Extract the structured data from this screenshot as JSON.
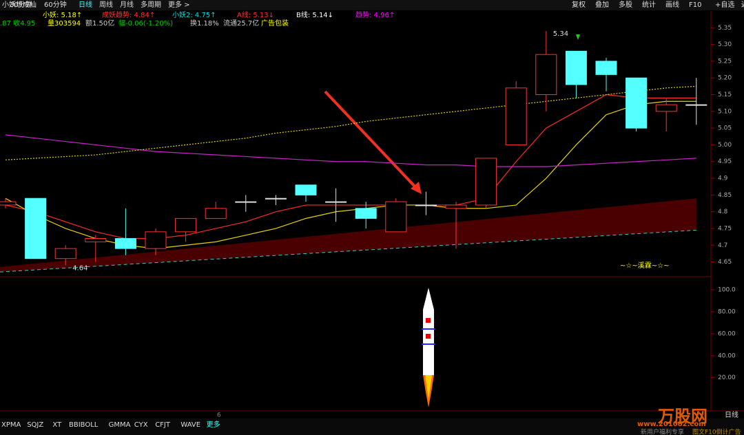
{
  "toolbar": {
    "left": [
      "30分钟",
      "60分钟",
      "日线",
      "周线",
      "月线",
      "多周期",
      "更多 >"
    ],
    "right": [
      "复权",
      "叠加",
      "多股",
      "统计",
      "画线",
      "F10",
      "+自选",
      "返回"
    ]
  },
  "indicator_row": {
    "name": "小妖想成仙",
    "items": [
      {
        "text": "小妖: 5.18↑",
        "color": "#ffff00"
      },
      {
        "text": "成妖趋势: 4.84↑",
        "color": "#ff3232"
      },
      {
        "text": "小妖2: 4.75↑",
        "color": "#00e0e0"
      },
      {
        "text": "A线: 5.13↓",
        "color": "#ff3232"
      },
      {
        "text": "B线: 5.14↓",
        "color": "#ffffff"
      },
      {
        "text": "趋势: 4.96↑",
        "color": "#ff00ff"
      }
    ]
  },
  "info_row": [
    {
      "text": ".87 收4.95",
      "color": "#00cc00"
    },
    {
      "text": "量303594",
      "color": "#ffff00"
    },
    {
      "text": "额1.50亿",
      "color": "#cccccc"
    },
    {
      "text": "幅-0.06(-1.20%)",
      "color": "#00cc00"
    },
    {
      "text": "换1.18%",
      "color": "#cccccc"
    },
    {
      "text": "流通25.7亿",
      "color": "#cccccc"
    },
    {
      "text": "广告包装",
      "color": "#ffff00"
    }
  ],
  "chart_data": {
    "type": "candlestick",
    "open": [
      4.82,
      4.84,
      4.66,
      4.71,
      4.72,
      4.69,
      4.74,
      4.78,
      4.83,
      4.84,
      4.88,
      4.83,
      4.81,
      4.74,
      4.82,
      4.81,
      4.82,
      5.0,
      5.15,
      5.28,
      5.25,
      5.2,
      5.1,
      5.12
    ],
    "high": [
      4.84,
      4.84,
      4.7,
      4.73,
      4.81,
      4.75,
      4.78,
      4.83,
      4.85,
      4.85,
      4.88,
      4.87,
      4.83,
      4.84,
      4.86,
      4.83,
      4.96,
      5.19,
      5.34,
      5.28,
      5.26,
      5.2,
      5.14,
      5.2
    ],
    "low": [
      4.81,
      4.66,
      4.64,
      4.65,
      4.67,
      4.67,
      4.71,
      4.78,
      4.8,
      4.82,
      4.83,
      4.77,
      4.75,
      4.74,
      4.79,
      4.69,
      4.81,
      5.0,
      5.1,
      5.14,
      5.16,
      5.04,
      5.04,
      5.06
    ],
    "close": [
      4.83,
      4.66,
      4.69,
      4.72,
      4.69,
      4.74,
      4.78,
      4.81,
      4.83,
      4.84,
      4.85,
      4.83,
      4.78,
      4.83,
      4.82,
      4.82,
      4.96,
      5.17,
      5.27,
      5.18,
      5.21,
      5.05,
      5.12,
      5.12
    ],
    "up_color": "#ff3232",
    "down_color": "#54ffff",
    "flat_color": "#e0e0e0",
    "series": [
      {
        "color": "#ff2a2a",
        "values": [
          4.82,
          4.8,
          4.77,
          4.74,
          4.72,
          4.72,
          4.73,
          4.75,
          4.77,
          4.8,
          4.82,
          4.82,
          4.82,
          4.82,
          4.82,
          4.82,
          4.84,
          4.95,
          5.05,
          5.1,
          5.15,
          5.14,
          5.14,
          5.14
        ]
      },
      {
        "color": "#e6d200",
        "values": [
          4.84,
          4.79,
          4.75,
          4.72,
          4.7,
          4.69,
          4.7,
          4.71,
          4.73,
          4.75,
          4.78,
          4.8,
          4.81,
          4.82,
          4.82,
          4.81,
          4.81,
          4.82,
          4.9,
          5.0,
          5.09,
          5.12,
          5.13,
          5.13
        ]
      },
      {
        "color": "#cc22cc",
        "values": [
          5.03,
          5.02,
          5.01,
          5.0,
          4.99,
          4.98,
          4.975,
          4.97,
          4.965,
          4.96,
          4.955,
          4.95,
          4.95,
          4.945,
          4.94,
          4.94,
          4.935,
          4.935,
          4.935,
          4.94,
          4.945,
          4.95,
          4.955,
          4.96
        ]
      },
      {
        "color": "#e6d200",
        "dotted": true,
        "values": [
          4.955,
          4.96,
          4.965,
          4.97,
          4.98,
          4.99,
          5.0,
          5.01,
          5.02,
          5.035,
          5.045,
          5.055,
          5.07,
          5.08,
          5.09,
          5.1,
          5.11,
          5.12,
          5.13,
          5.14,
          5.15,
          5.16,
          5.17,
          5.175
        ]
      }
    ],
    "channel": {
      "upper": [
        4.635,
        4.84
      ],
      "lower": [
        4.62,
        4.745
      ],
      "fill": "#4a0000",
      "line_color": "#33cccc"
    },
    "annotations": [
      {
        "text": "5.34",
        "index": 18,
        "price": 5.34
      },
      {
        "text": "4.64",
        "index": 2,
        "price": 4.64
      }
    ],
    "signature": "~☆~溪霖~☆~",
    "ylim": [
      4.61,
      5.4
    ],
    "yticks": [
      4.65,
      4.7,
      4.75,
      4.8,
      4.85,
      4.9,
      4.95,
      {
        "value": 5.0,
        "label": "5.00"
      },
      5.05,
      {
        "value": 5.1,
        "label": "5.10"
      },
      5.15,
      {
        "value": 5.2,
        "label": "5.20"
      },
      5.25,
      {
        "value": 5.3,
        "label": "5.30"
      },
      5.35
    ],
    "lower_panel": {
      "ylim": [
        -9,
        110
      ],
      "yticks": [
        {
          "value": 20,
          "label": "20.00"
        },
        {
          "value": 40,
          "label": "40.00"
        },
        {
          "value": 60,
          "label": "60.00"
        },
        {
          "value": 80,
          "label": "80.00"
        },
        {
          "value": 100,
          "label": "100.0"
        }
      ]
    }
  },
  "tabs": [
    "XPMA",
    "SQJZ",
    "XT",
    "BBIBOLL",
    "GMMA",
    "CYX",
    "CFJT",
    "WAVE",
    "更多"
  ],
  "bottom": {
    "marker": "6",
    "period": "日线",
    "watermark": "万股网",
    "site": "www.201082.com",
    "footer": "新用户福利专享",
    "footer2": "图文F10倒计广告"
  }
}
